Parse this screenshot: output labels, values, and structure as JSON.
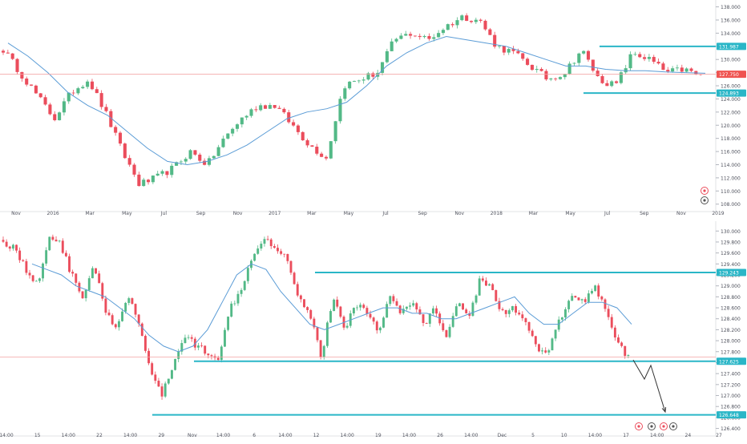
{
  "chart_data": [
    {
      "type": "candlestick",
      "panel": "top",
      "price_axis_ticks": [
        108,
        110,
        112,
        114,
        116,
        118,
        120,
        122,
        124,
        126,
        128,
        130,
        132,
        134,
        136,
        138
      ],
      "price_axis_tick_labels": [
        "108.000",
        "110.000",
        "112.000",
        "114.000",
        "116.000",
        "118.000",
        "120.000",
        "122.000",
        "124.000",
        "126.000",
        "128.000",
        "130.000",
        "132.000",
        "134.000",
        "136.000",
        "138.000"
      ],
      "ylim": [
        107.6,
        138.8
      ],
      "time_axis_labels": [
        "Nov",
        "2016",
        "Mar",
        "May",
        "Jul",
        "Sep",
        "Nov",
        "2017",
        "Mar",
        "May",
        "Jul",
        "Sep",
        "Nov",
        "2018",
        "Mar",
        "May",
        "Jul",
        "Sep",
        "Nov",
        "2019"
      ],
      "horizontal_levels": [
        {
          "label": "131.987",
          "value": 131.987,
          "color": "#2ab6c7",
          "style": "badge"
        },
        {
          "label": "127.750",
          "value": 127.75,
          "color": "#ef5350",
          "style": "badge"
        },
        {
          "label": "124.893",
          "value": 124.893,
          "color": "#2ab6c7",
          "style": "badge"
        }
      ],
      "colors": {
        "up": "#53b987",
        "down": "#eb4d5c",
        "ma": "#5b9cd6",
        "level": "#2ab6c7",
        "price_line": "#f4a4a4"
      },
      "series_path": [
        131.5,
        128,
        124.5,
        121,
        125,
        127,
        122,
        116,
        111,
        112,
        113.5,
        116,
        114,
        118,
        121,
        123,
        123,
        120,
        117,
        115,
        126,
        127,
        128,
        133,
        134,
        133,
        135,
        136.5,
        136,
        132,
        131,
        129,
        127,
        128,
        131.5,
        127,
        126,
        131,
        130,
        128,
        128.5,
        127.5
      ],
      "ma_path": [
        132.5,
        130.5,
        128,
        125,
        123,
        121.5,
        119,
        116.5,
        114.5,
        114,
        114.5,
        115.5,
        117,
        119,
        121,
        122,
        122.5,
        123.5,
        126,
        129,
        131,
        132.5,
        133.5,
        133,
        132.5,
        132,
        131,
        130,
        129,
        129,
        128.5,
        128.3,
        128.3,
        128.1,
        128,
        127.9
      ]
    },
    {
      "type": "candlestick",
      "panel": "bottom",
      "price_axis_ticks": [
        126.4,
        126.6,
        126.8,
        127.0,
        127.2,
        127.4,
        127.6,
        127.8,
        128.0,
        128.2,
        128.4,
        128.6,
        128.8,
        129.0,
        129.2,
        129.4,
        129.6,
        129.8,
        130.0
      ],
      "price_axis_tick_labels": [
        "126.400",
        "126.600",
        "126.800",
        "127.000",
        "127.200",
        "127.400",
        "127.600",
        "127.800",
        "128.000",
        "128.200",
        "128.400",
        "128.600",
        "128.800",
        "129.000",
        "129.200",
        "129.400",
        "129.600",
        "129.800",
        "130.000"
      ],
      "ylim": [
        126.35,
        130.15
      ],
      "time_axis_labels": [
        "14:00",
        "15",
        "14:00",
        "22",
        "14:00",
        "29",
        "Nov",
        "14:00",
        "6",
        "14:00",
        "12",
        "14:00",
        "19",
        "14:00",
        "26",
        "14:00",
        "Dec",
        "5",
        "10",
        "14:00",
        "17",
        "14:00",
        "24",
        "27"
      ],
      "horizontal_levels": [
        {
          "label": "129.243",
          "value": 129.243,
          "color": "#2ab6c7",
          "style": "badge"
        },
        {
          "label": "127.625",
          "value": 127.625,
          "color": "#2ab6c7",
          "style": "badge"
        },
        {
          "label": "126.648",
          "value": 126.648,
          "color": "#2ab6c7",
          "style": "badge"
        }
      ],
      "current_price": 127.7,
      "colors": {
        "up": "#53b987",
        "down": "#eb4d5c",
        "ma": "#5b9cd6",
        "level": "#2ab6c7",
        "price_line": "#f4a4a4",
        "arrow": "#333333"
      },
      "series_path": [
        129.8,
        129.7,
        129.3,
        129.0,
        129.9,
        129.8,
        129.2,
        128.8,
        129.4,
        128.5,
        128.2,
        128.8,
        128.3,
        127.4,
        127.0,
        127.6,
        128.1,
        127.9,
        127.8,
        127.7,
        128.6,
        129.0,
        129.6,
        129.9,
        129.7,
        129.5,
        128.8,
        128.5,
        127.7,
        128.8,
        128.2,
        128.7,
        128.5,
        128.2,
        128.8,
        128.5,
        128.7,
        128.3,
        128.6,
        128.0,
        128.8,
        128.4,
        129.2,
        128.9,
        128.5,
        128.6,
        128.3,
        127.8,
        127.8,
        128.4,
        128.8,
        128.7,
        129.0,
        128.6,
        128.0,
        127.7
      ],
      "ma_path": [
        129.4,
        129.3,
        129.2,
        129.0,
        128.9,
        128.8,
        128.6,
        128.4,
        128.1,
        127.9,
        127.8,
        127.9,
        128.2,
        128.7,
        129.2,
        129.4,
        129.3,
        128.9,
        128.6,
        128.3,
        128.2,
        128.3,
        128.4,
        128.5,
        128.6,
        128.6,
        128.5,
        128.5,
        128.4,
        128.4,
        128.5,
        128.6,
        128.7,
        128.8,
        128.5,
        128.3,
        128.3,
        128.5,
        128.7,
        128.7,
        128.6,
        128.3
      ],
      "projection_arrow": [
        {
          "x_ratio": 0.0,
          "value": 127.65
        },
        {
          "x_ratio": 0.35,
          "value": 127.3
        },
        {
          "x_ratio": 0.55,
          "value": 127.55
        },
        {
          "x_ratio": 1.0,
          "value": 126.7
        }
      ]
    }
  ]
}
